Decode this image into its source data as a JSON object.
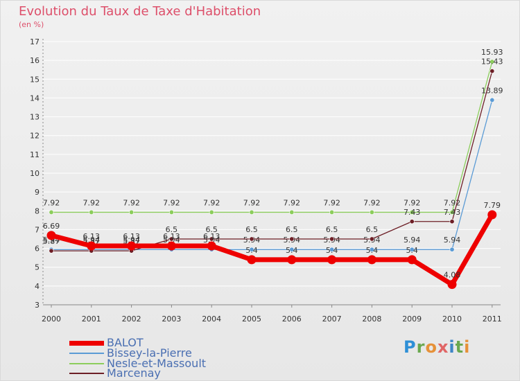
{
  "header": {
    "title": "Evolution du Taux de Taxe d'Habitation",
    "unit": "(en %)"
  },
  "logo": {
    "letters": [
      "P",
      "r",
      "o",
      "x",
      "i",
      "t",
      "i"
    ],
    "colors": [
      "#2e8fd6",
      "#6aa84f",
      "#e69138",
      "#e06666",
      "#3d85c6",
      "#6aa84f",
      "#e69138"
    ]
  },
  "chart_data": {
    "type": "line",
    "title": "Evolution du Taux de Taxe d'Habitation",
    "ylabel": "(en %)",
    "xlabel": "",
    "ylim": [
      3,
      17
    ],
    "yticks": [
      3,
      4,
      5,
      6,
      7,
      8,
      9,
      10,
      11,
      12,
      13,
      14,
      15,
      16,
      17
    ],
    "grid": "horizontal",
    "legend": "bottom-left",
    "x": [
      "2000",
      "2001",
      "2002",
      "2003",
      "2004",
      "2005",
      "2006",
      "2007",
      "2008",
      "2009",
      "2010",
      "2011"
    ],
    "series": [
      {
        "name": "Nesle-et-Massoult",
        "color": "#8ccd5c",
        "values": [
          7.92,
          7.92,
          7.92,
          7.92,
          7.92,
          7.92,
          7.92,
          7.92,
          7.92,
          7.92,
          7.92,
          15.93
        ],
        "labels": [
          "7.92",
          "7.92",
          "7.92",
          "7.92",
          "7.92",
          "7.92",
          "7.92",
          "7.92",
          "7.92",
          "7.92",
          "7.92",
          "15.93"
        ]
      },
      {
        "name": "Bissey-la-Pierre",
        "color": "#5b9bd5",
        "values": [
          5.94,
          5.94,
          5.94,
          5.94,
          5.94,
          5.94,
          5.94,
          5.94,
          5.94,
          5.94,
          5.94,
          13.89
        ],
        "labels": [
          "5.94",
          "5.94",
          "5.94",
          "5.94",
          "5.94",
          "5.94",
          "5.94",
          "5.94",
          "5.94",
          "5.94",
          "5.94",
          "13.89"
        ]
      },
      {
        "name": "Marcenay",
        "color": "#6d1f26",
        "values": [
          5.87,
          5.87,
          5.87,
          6.5,
          6.5,
          6.5,
          6.5,
          6.5,
          6.5,
          7.43,
          7.43,
          15.43
        ],
        "labels": [
          "5.87",
          "5.87",
          "5.87",
          "6.5",
          "6.5",
          "6.5",
          "6.5",
          "6.5",
          "6.5",
          "7.43",
          "7.43",
          "15.43"
        ]
      },
      {
        "name": "BALOT",
        "color": "#ee0000",
        "values": [
          6.69,
          6.13,
          6.13,
          6.13,
          6.13,
          5.4,
          5.4,
          5.4,
          5.4,
          5.4,
          4.08,
          7.79
        ],
        "labels": [
          "6.69",
          "6.13",
          "6.13",
          "6.13",
          "6.13",
          "5.4",
          "5.4",
          "5.4",
          "5.4",
          "5.4",
          "4.08",
          "7.79"
        ]
      }
    ],
    "legend_order": [
      "BALOT",
      "Bissey-la-Pierre",
      "Nesle-et-Massoult",
      "Marcenay"
    ]
  }
}
